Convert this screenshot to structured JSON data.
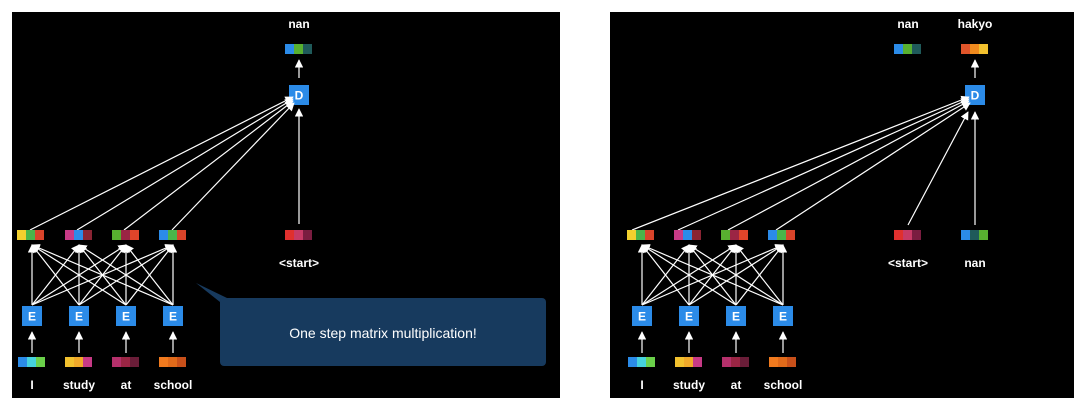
{
  "left": {
    "output_label": "nan",
    "encoder_label": "E",
    "decoder_label": "D",
    "start_label": "<start>",
    "words": [
      "I",
      "study",
      "at",
      "school"
    ],
    "callout": "One step matrix multiplication!"
  },
  "right": {
    "output_labels": [
      "nan",
      "hakyo"
    ],
    "encoder_label": "E",
    "decoder_label": "D",
    "decoder_inputs": [
      "<start>",
      "nan"
    ],
    "words": [
      "I",
      "study",
      "at",
      "school"
    ]
  },
  "colors": {
    "node": "#2b8be8",
    "callout": "#173a5e",
    "embeddings": [
      [
        "#2b8be8",
        "#45d2dc",
        "#6ad04a"
      ],
      [
        "#f2c12e",
        "#f0a92a",
        "#c73a86"
      ],
      [
        "#b5306b",
        "#9b2544",
        "#6a1d38"
      ],
      [
        "#f07a1e",
        "#e06a1a",
        "#c8501a"
      ]
    ],
    "hidden": [
      [
        "#f2d02e",
        "#4ab54a",
        "#d9442a"
      ],
      [
        "#c73a86",
        "#2b8be8",
        "#8a2433"
      ],
      [
        "#58b030",
        "#9b2544",
        "#e0442a"
      ],
      [
        "#2b8be8",
        "#4ab54a",
        "#d9442a"
      ]
    ],
    "start_vec": [
      "#e0302e",
      "#c73a66",
      "#7a1d40"
    ],
    "out_nan": [
      "#2b8be8",
      "#58b030",
      "#1f5a5a"
    ],
    "out_hakyo": [
      "#e0552a",
      "#f08a1e",
      "#f2c12e"
    ],
    "nan_input": [
      "#2b8be8",
      "#1f5a5a",
      "#58b030"
    ]
  }
}
